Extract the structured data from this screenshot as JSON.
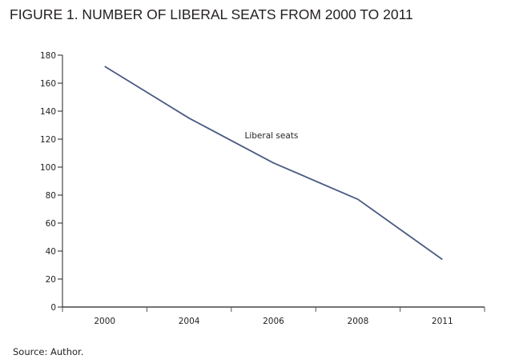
{
  "figure": {
    "title": "FIGURE 1. NUMBER OF LIBERAL SEATS FROM 2000 TO 2011",
    "source": "Source: Author."
  },
  "chart_data": {
    "type": "line",
    "title": "FIGURE 1. NUMBER OF LIBERAL SEATS FROM 2000 TO 2011",
    "xlabel": "",
    "ylabel": "",
    "categories": [
      "2000",
      "2004",
      "2006",
      "2008",
      "2011"
    ],
    "series": [
      {
        "name": "Liberal seats",
        "values": [
          172,
          135,
          103,
          77,
          34
        ],
        "color": "#4a5a82"
      }
    ],
    "ylim": [
      0,
      180
    ],
    "yticks": [
      0,
      20,
      40,
      60,
      80,
      100,
      120,
      140,
      160,
      180
    ],
    "grid": false,
    "legend": "none",
    "annotations": [
      {
        "text": "Liberal seats",
        "near_category": "2006",
        "position": "above-line"
      }
    ],
    "axis_color": "#231f20"
  }
}
